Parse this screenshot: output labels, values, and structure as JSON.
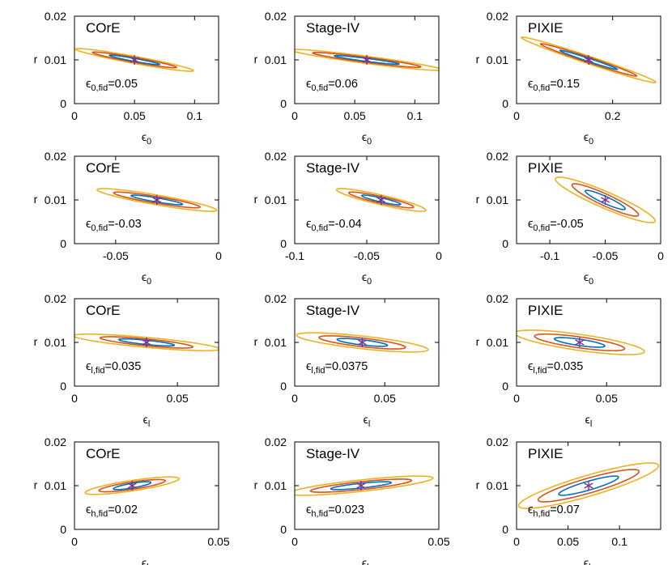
{
  "colors": {
    "inner": "#0072BD",
    "middle": "#D95319",
    "outer": "#EDB120",
    "marker": "#7E2F8E",
    "axis": "#000000"
  },
  "ylabel": "r",
  "fid_symbol": "ϵ",
  "eps0_label": "ϵ0",
  "chart_data": [
    {
      "type": "contour",
      "title": "COrE",
      "xlabel": "ϵ0",
      "ylabel": "r",
      "xlim": [
        0,
        0.12
      ],
      "ylim": [
        0,
        0.02
      ],
      "xticks": [
        0,
        0.05,
        0.1
      ],
      "xtick_labels": [
        "0",
        "0.05",
        "0.1"
      ],
      "yticks": [
        0,
        0.01,
        0.02
      ],
      "ytick_labels": [
        "0",
        "0.01",
        "0.02"
      ],
      "param_sub": "0",
      "fid_sub": "0,fid",
      "fid_value": "=0.05",
      "fiducial": [
        0.05,
        0.01
      ],
      "ellipses": [
        {
          "level": "inner",
          "cx": 0.05,
          "cy": 0.01,
          "x_halfwidth": 0.021,
          "y_halfwidth": 0.0011,
          "corr": -0.95
        },
        {
          "level": "middle",
          "cx": 0.05,
          "cy": 0.01,
          "x_halfwidth": 0.035,
          "y_halfwidth": 0.0018,
          "corr": -0.95
        },
        {
          "level": "outer",
          "cx": 0.05,
          "cy": 0.01,
          "x_halfwidth": 0.049,
          "y_halfwidth": 0.0026,
          "corr": -0.95
        }
      ]
    },
    {
      "type": "contour",
      "title": "Stage-IV",
      "xlabel": "ϵ0",
      "ylabel": "r",
      "xlim": [
        0,
        0.12
      ],
      "ylim": [
        0,
        0.02
      ],
      "xticks": [
        0,
        0.05,
        0.1
      ],
      "xtick_labels": [
        "0",
        "0.05",
        "0.1"
      ],
      "yticks": [
        0,
        0.01,
        0.02
      ],
      "ytick_labels": [
        "0",
        "0.01",
        "0.02"
      ],
      "param_sub": "0",
      "fid_sub": "0,fid",
      "fid_value": "=0.06",
      "fiducial": [
        0.06,
        0.01
      ],
      "ellipses": [
        {
          "level": "inner",
          "cx": 0.06,
          "cy": 0.01,
          "x_halfwidth": 0.027,
          "y_halfwidth": 0.001,
          "corr": -0.94
        },
        {
          "level": "middle",
          "cx": 0.06,
          "cy": 0.01,
          "x_halfwidth": 0.045,
          "y_halfwidth": 0.0017,
          "corr": -0.94
        },
        {
          "level": "outer",
          "cx": 0.06,
          "cy": 0.01,
          "x_halfwidth": 0.063,
          "y_halfwidth": 0.0024,
          "corr": -0.94
        }
      ]
    },
    {
      "type": "contour",
      "title": "PIXIE",
      "xlabel": "ϵ0",
      "ylabel": "r",
      "xlim": [
        0,
        0.3
      ],
      "ylim": [
        0,
        0.02
      ],
      "xticks": [
        0,
        0.2
      ],
      "xtick_labels": [
        "0",
        "0.2"
      ],
      "yticks": [
        0,
        0.01,
        0.02
      ],
      "ytick_labels": [
        "0",
        "0.01",
        "0.02"
      ],
      "param_sub": "0",
      "fid_sub": "0,fid",
      "fid_value": "=0.15",
      "fiducial": [
        0.15,
        0.01
      ],
      "ellipses": [
        {
          "level": "inner",
          "cx": 0.15,
          "cy": 0.01,
          "x_halfwidth": 0.06,
          "y_halfwidth": 0.0022,
          "corr": -0.985
        },
        {
          "level": "middle",
          "cx": 0.15,
          "cy": 0.01,
          "x_halfwidth": 0.1,
          "y_halfwidth": 0.0037,
          "corr": -0.985
        },
        {
          "level": "outer",
          "cx": 0.15,
          "cy": 0.01,
          "x_halfwidth": 0.14,
          "y_halfwidth": 0.0052,
          "corr": -0.985
        }
      ]
    },
    {
      "type": "contour",
      "title": "COrE",
      "xlabel": "ϵ0",
      "ylabel": "r",
      "xlim": [
        -0.07,
        0
      ],
      "ylim": [
        0,
        0.02
      ],
      "xticks": [
        -0.05,
        0
      ],
      "xtick_labels": [
        "-0.05",
        "0"
      ],
      "yticks": [
        0,
        0.01,
        0.02
      ],
      "ytick_labels": [
        "0",
        "0.01",
        "0.02"
      ],
      "param_sub": "0",
      "fid_sub": "0,fid",
      "fid_value": "=-0.03",
      "fiducial": [
        -0.03,
        0.01
      ],
      "ellipses": [
        {
          "level": "inner",
          "cx": -0.03,
          "cy": 0.01,
          "x_halfwidth": 0.0125,
          "y_halfwidth": 0.0011,
          "corr": -0.9
        },
        {
          "level": "middle",
          "cx": -0.03,
          "cy": 0.01,
          "x_halfwidth": 0.021,
          "y_halfwidth": 0.0018,
          "corr": -0.9
        },
        {
          "level": "outer",
          "cx": -0.03,
          "cy": 0.01,
          "x_halfwidth": 0.029,
          "y_halfwidth": 0.0026,
          "corr": -0.9
        }
      ]
    },
    {
      "type": "contour",
      "title": "Stage-IV",
      "xlabel": "ϵ0",
      "ylabel": "r",
      "xlim": [
        -0.1,
        0
      ],
      "ylim": [
        0,
        0.02
      ],
      "xticks": [
        -0.1,
        -0.05,
        0
      ],
      "xtick_labels": [
        "-0.1",
        "-0.05",
        "0"
      ],
      "yticks": [
        0,
        0.01,
        0.02
      ],
      "ytick_labels": [
        "0",
        "0.01",
        "0.02"
      ],
      "param_sub": "0",
      "fid_sub": "0,fid",
      "fid_value": "=-0.04",
      "fiducial": [
        -0.04,
        0.01
      ],
      "ellipses": [
        {
          "level": "inner",
          "cx": -0.04,
          "cy": 0.01,
          "x_halfwidth": 0.0135,
          "y_halfwidth": 0.0011,
          "corr": -0.9
        },
        {
          "level": "middle",
          "cx": -0.04,
          "cy": 0.01,
          "x_halfwidth": 0.0225,
          "y_halfwidth": 0.0018,
          "corr": -0.9
        },
        {
          "level": "outer",
          "cx": -0.04,
          "cy": 0.01,
          "x_halfwidth": 0.031,
          "y_halfwidth": 0.0026,
          "corr": -0.9
        }
      ]
    },
    {
      "type": "contour",
      "title": "PIXIE",
      "xlabel": "ϵ0",
      "ylabel": "r",
      "xlim": [
        -0.13,
        0
      ],
      "ylim": [
        0,
        0.02
      ],
      "xticks": [
        -0.1,
        -0.05,
        0
      ],
      "xtick_labels": [
        "-0.1",
        "-0.05",
        "0"
      ],
      "yticks": [
        0,
        0.01,
        0.02
      ],
      "ytick_labels": [
        "0",
        "0.01",
        "0.02"
      ],
      "param_sub": "0",
      "fid_sub": "0,fid",
      "fid_value": "=-0.05",
      "fiducial": [
        -0.05,
        0.01
      ],
      "ellipses": [
        {
          "level": "inner",
          "cx": -0.05,
          "cy": 0.01,
          "x_halfwidth": 0.018,
          "y_halfwidth": 0.0022,
          "corr": -0.92
        },
        {
          "level": "middle",
          "cx": -0.05,
          "cy": 0.01,
          "x_halfwidth": 0.03,
          "y_halfwidth": 0.0037,
          "corr": -0.92
        },
        {
          "level": "outer",
          "cx": -0.05,
          "cy": 0.01,
          "x_halfwidth": 0.045,
          "y_halfwidth": 0.0052,
          "corr": -0.92
        }
      ]
    },
    {
      "type": "contour",
      "title": "COrE",
      "xlabel": "ϵl",
      "ylabel": "r",
      "xlim": [
        0,
        0.07
      ],
      "ylim": [
        0,
        0.02
      ],
      "xticks": [
        0,
        0.05
      ],
      "xtick_labels": [
        "0",
        "0.05"
      ],
      "yticks": [
        0,
        0.01,
        0.02
      ],
      "ytick_labels": [
        "0",
        "0.01",
        "0.02"
      ],
      "param_sub": "l",
      "fid_sub": "l,fid",
      "fid_value": "=0.035",
      "fiducial": [
        0.035,
        0.01
      ],
      "ellipses": [
        {
          "level": "inner",
          "cx": 0.035,
          "cy": 0.01,
          "x_halfwidth": 0.0135,
          "y_halfwidth": 0.0008,
          "corr": -0.8
        },
        {
          "level": "middle",
          "cx": 0.035,
          "cy": 0.01,
          "x_halfwidth": 0.0225,
          "y_halfwidth": 0.0013,
          "corr": -0.8
        },
        {
          "level": "outer",
          "cx": 0.035,
          "cy": 0.01,
          "x_halfwidth": 0.0355,
          "y_halfwidth": 0.0019,
          "corr": -0.8
        }
      ]
    },
    {
      "type": "contour",
      "title": "Stage-IV",
      "xlabel": "ϵl",
      "ylabel": "r",
      "xlim": [
        0,
        0.08
      ],
      "ylim": [
        0,
        0.02
      ],
      "xticks": [
        0,
        0.05
      ],
      "xtick_labels": [
        "0",
        "0.05"
      ],
      "yticks": [
        0,
        0.01,
        0.02
      ],
      "ytick_labels": [
        "0",
        "0.01",
        "0.02"
      ],
      "param_sub": "l",
      "fid_sub": "l,fid",
      "fid_value": "=0.0375",
      "fiducial": [
        0.0375,
        0.01
      ],
      "ellipses": [
        {
          "level": "inner",
          "cx": 0.0375,
          "cy": 0.01,
          "x_halfwidth": 0.014,
          "y_halfwidth": 0.0009,
          "corr": -0.75
        },
        {
          "level": "middle",
          "cx": 0.0375,
          "cy": 0.01,
          "x_halfwidth": 0.024,
          "y_halfwidth": 0.0015,
          "corr": -0.75
        },
        {
          "level": "outer",
          "cx": 0.0375,
          "cy": 0.01,
          "x_halfwidth": 0.0365,
          "y_halfwidth": 0.0022,
          "corr": -0.75
        }
      ]
    },
    {
      "type": "contour",
      "title": "PIXIE",
      "xlabel": "ϵl",
      "ylabel": "r",
      "xlim": [
        0,
        0.08
      ],
      "ylim": [
        0,
        0.02
      ],
      "xticks": [
        0,
        0.05
      ],
      "xtick_labels": [
        "0",
        "0.05"
      ],
      "yticks": [
        0,
        0.01,
        0.02
      ],
      "ytick_labels": [
        "0",
        "0.01",
        "0.02"
      ],
      "param_sub": "l",
      "fid_sub": "l,fid",
      "fid_value": "=0.035",
      "fiducial": [
        0.035,
        0.01
      ],
      "ellipses": [
        {
          "level": "inner",
          "cx": 0.035,
          "cy": 0.01,
          "x_halfwidth": 0.014,
          "y_halfwidth": 0.0011,
          "corr": -0.75
        },
        {
          "level": "middle",
          "cx": 0.035,
          "cy": 0.01,
          "x_halfwidth": 0.025,
          "y_halfwidth": 0.0019,
          "corr": -0.75
        },
        {
          "level": "outer",
          "cx": 0.035,
          "cy": 0.01,
          "x_halfwidth": 0.036,
          "y_halfwidth": 0.0028,
          "corr": -0.75
        }
      ]
    },
    {
      "type": "contour",
      "title": "COrE",
      "xlabel": "ϵh",
      "ylabel": "r",
      "xlim": [
        0,
        0.05
      ],
      "ylim": [
        0,
        0.02
      ],
      "xticks": [
        0,
        0.05
      ],
      "xtick_labels": [
        "0",
        "0.05"
      ],
      "yticks": [
        0,
        0.01,
        0.02
      ],
      "ytick_labels": [
        "0",
        "0.01",
        "0.02"
      ],
      "param_sub": "h",
      "fid_sub": "h,fid",
      "fid_value": "=0.02",
      "fiducial": [
        0.02,
        0.01
      ],
      "ellipses": [
        {
          "level": "inner",
          "cx": 0.02,
          "cy": 0.01,
          "x_halfwidth": 0.0065,
          "y_halfwidth": 0.0009,
          "corr": 0.8
        },
        {
          "level": "middle",
          "cx": 0.02,
          "cy": 0.01,
          "x_halfwidth": 0.0115,
          "y_halfwidth": 0.0014,
          "corr": 0.8
        },
        {
          "level": "outer",
          "cx": 0.02,
          "cy": 0.01,
          "x_halfwidth": 0.0163,
          "y_halfwidth": 0.002,
          "corr": 0.8
        }
      ]
    },
    {
      "type": "contour",
      "title": "Stage-IV",
      "xlabel": "ϵh",
      "ylabel": "r",
      "xlim": [
        0,
        0.05
      ],
      "ylim": [
        0,
        0.02
      ],
      "xticks": [
        0,
        0.05
      ],
      "xtick_labels": [
        "0",
        "0.05"
      ],
      "yticks": [
        0,
        0.01,
        0.02
      ],
      "ytick_labels": [
        "0",
        "0.01",
        "0.02"
      ],
      "param_sub": "h",
      "fid_sub": "h,fid",
      "fid_value": "=0.023",
      "fiducial": [
        0.023,
        0.01
      ],
      "ellipses": [
        {
          "level": "inner",
          "cx": 0.023,
          "cy": 0.01,
          "x_halfwidth": 0.0105,
          "y_halfwidth": 0.0009,
          "corr": 0.8
        },
        {
          "level": "middle",
          "cx": 0.023,
          "cy": 0.01,
          "x_halfwidth": 0.0175,
          "y_halfwidth": 0.0015,
          "corr": 0.8
        },
        {
          "level": "outer",
          "cx": 0.023,
          "cy": 0.01,
          "x_halfwidth": 0.025,
          "y_halfwidth": 0.0022,
          "corr": 0.8
        }
      ]
    },
    {
      "type": "contour",
      "title": "PIXIE",
      "xlabel": "ϵh",
      "ylabel": "r",
      "xlim": [
        0,
        0.14
      ],
      "ylim": [
        0,
        0.02
      ],
      "xticks": [
        0,
        0.05,
        0.1
      ],
      "xtick_labels": [
        "0",
        "0.05",
        "0.1"
      ],
      "yticks": [
        0,
        0.01,
        0.02
      ],
      "ytick_labels": [
        "0",
        "0.01",
        "0.02"
      ],
      "param_sub": "h",
      "fid_sub": "h,fid",
      "fid_value": "=0.07",
      "fiducial": [
        0.07,
        0.01
      ],
      "ellipses": [
        {
          "level": "inner",
          "cx": 0.07,
          "cy": 0.01,
          "x_halfwidth": 0.029,
          "y_halfwidth": 0.0022,
          "corr": 0.88
        },
        {
          "level": "middle",
          "cx": 0.07,
          "cy": 0.01,
          "x_halfwidth": 0.049,
          "y_halfwidth": 0.0037,
          "corr": 0.88
        },
        {
          "level": "outer",
          "cx": 0.07,
          "cy": 0.01,
          "x_halfwidth": 0.068,
          "y_halfwidth": 0.0052,
          "corr": 0.88
        }
      ]
    }
  ]
}
